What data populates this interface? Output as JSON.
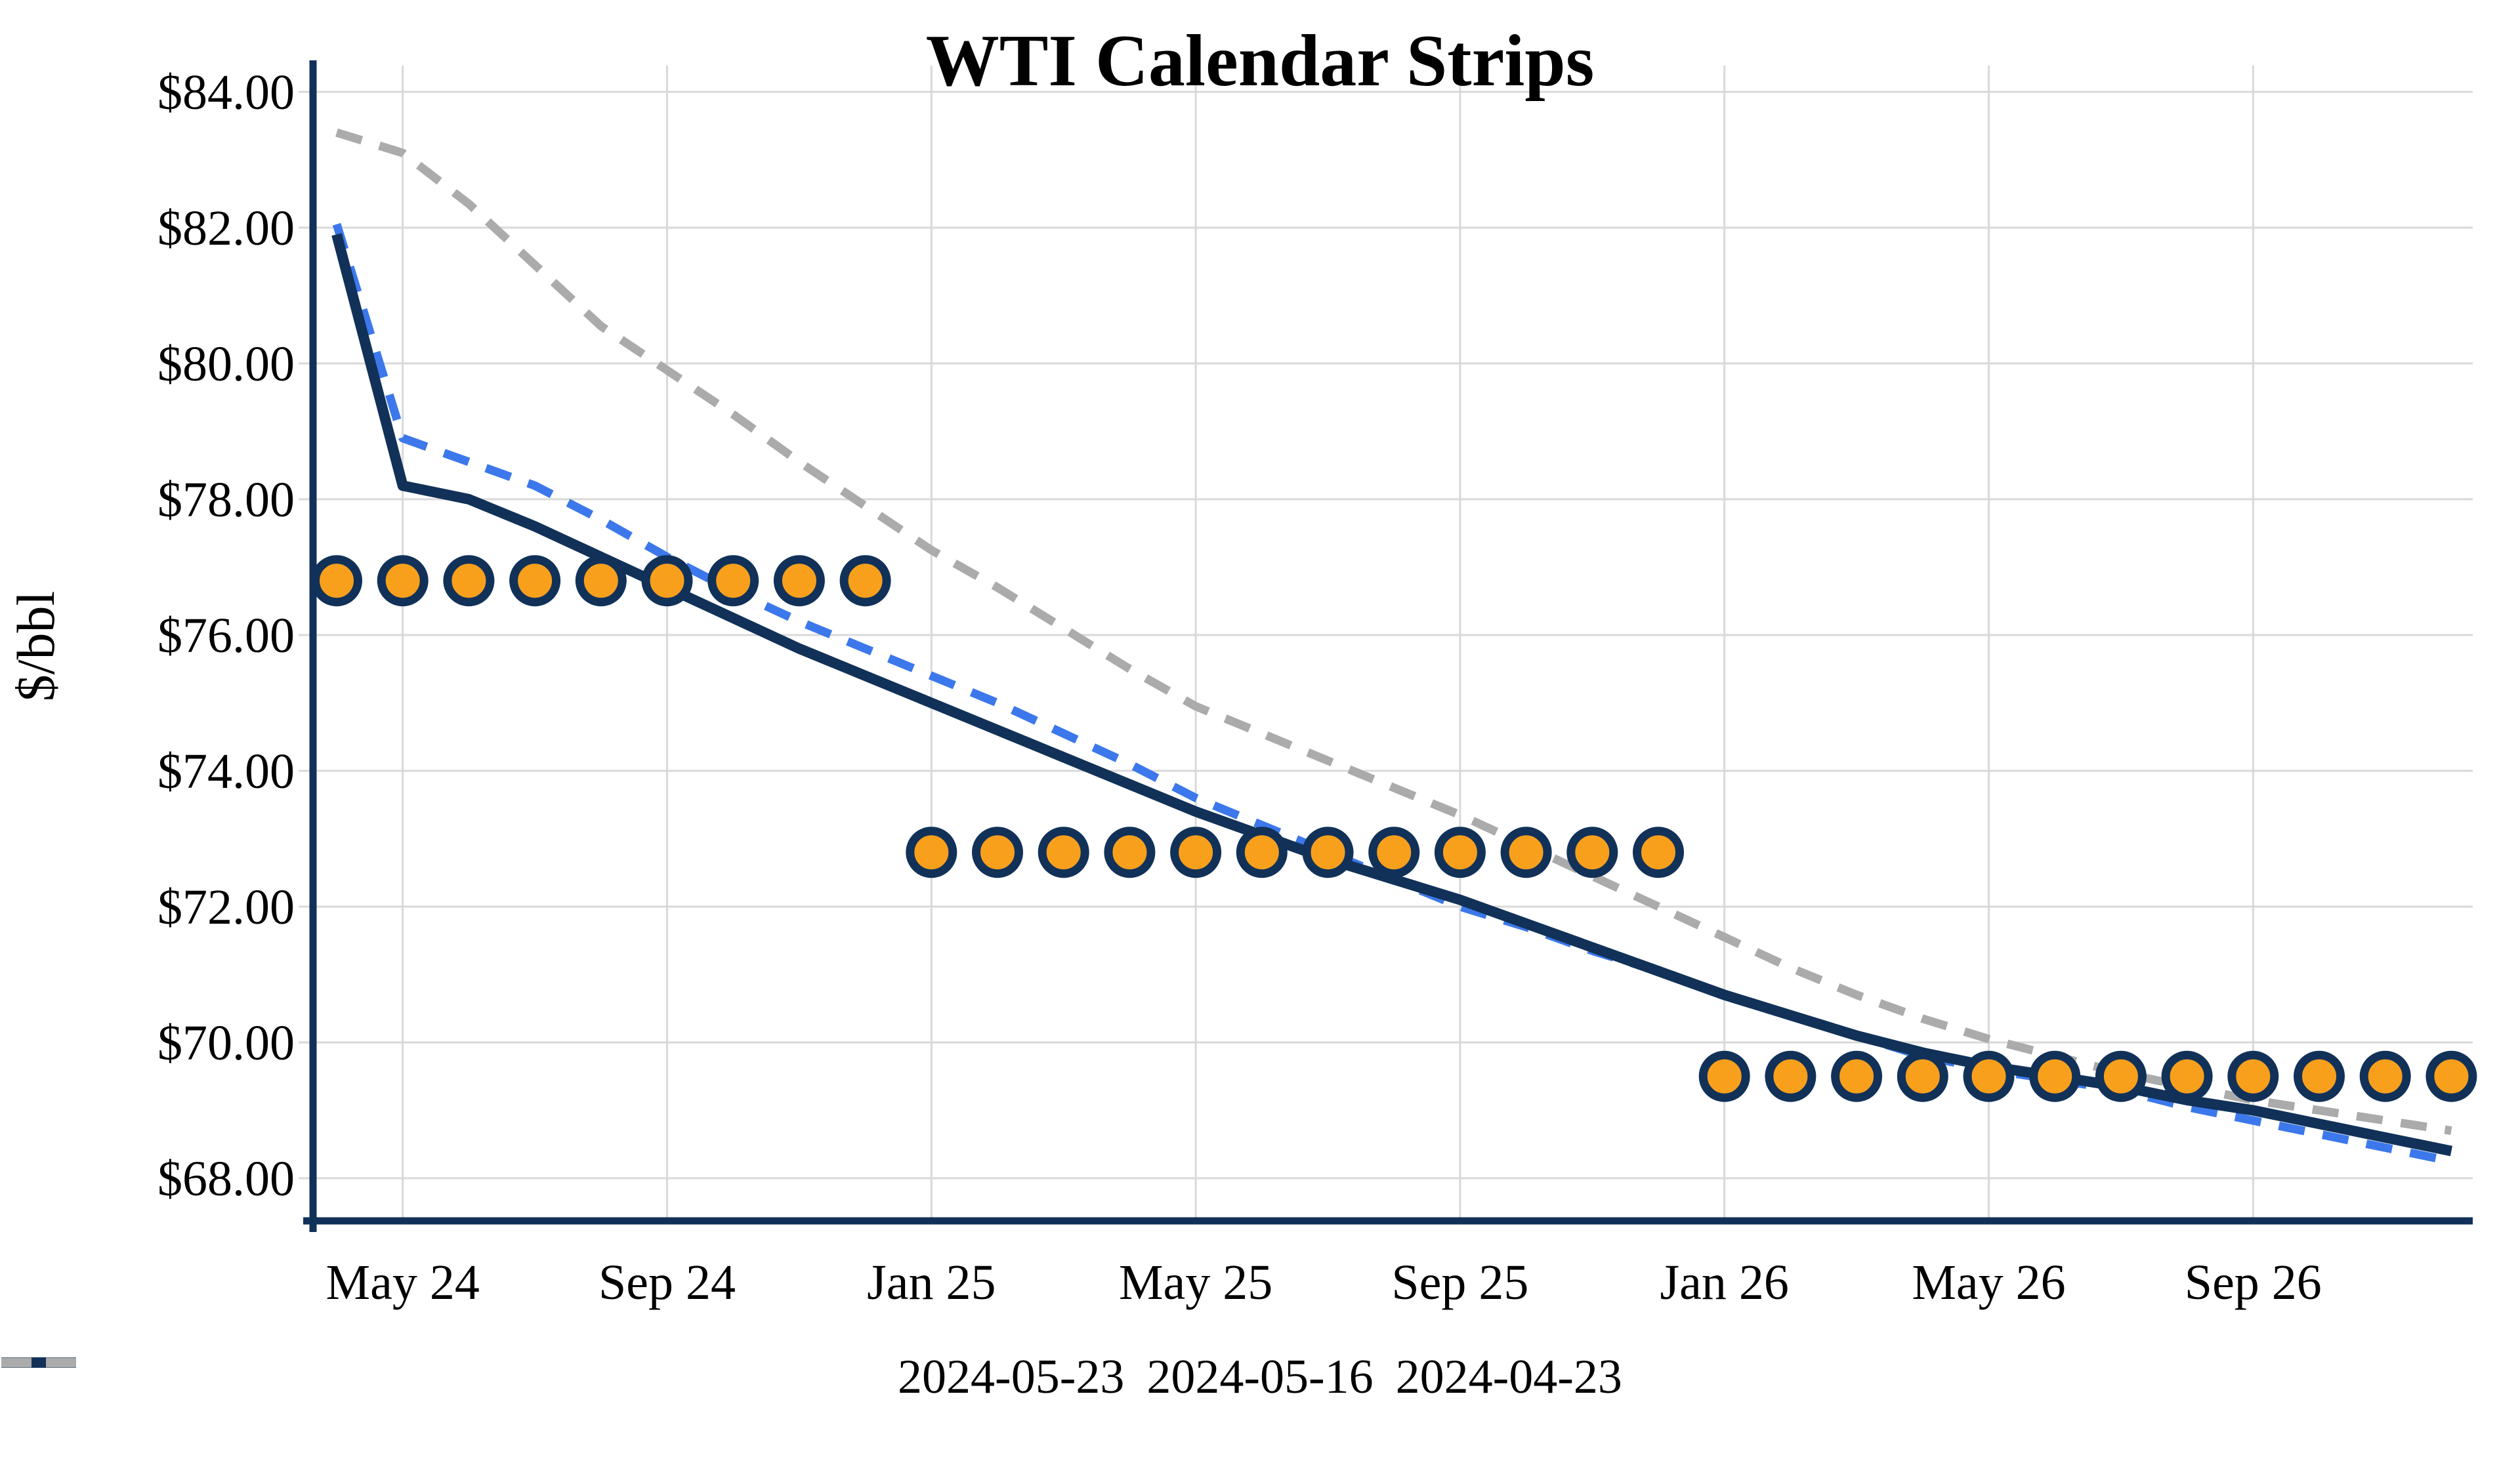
{
  "title": "WTI Calendar Strips",
  "y_axis": {
    "label": "$/bbl",
    "min": 68,
    "max": 84,
    "step": 2,
    "ticks": [
      "$84.00",
      "$82.00",
      "$80.00",
      "$78.00",
      "$76.00",
      "$74.00",
      "$72.00",
      "$70.00",
      "$68.00"
    ]
  },
  "x_axis": {
    "ticks": [
      "May 24",
      "Sep 24",
      "Jan 25",
      "May 25",
      "Sep 25",
      "Jan 26",
      "May 26",
      "Sep 26"
    ]
  },
  "legend": {
    "items": [
      {
        "label": "2024-05-23",
        "style": "solid",
        "color": "#113158"
      },
      {
        "label": "2024-05-16",
        "style": "dashed",
        "color": "#3C78EB"
      },
      {
        "label": "2024-04-23",
        "style": "dashed",
        "color": "#ABABAB"
      }
    ]
  },
  "colors": {
    "navy": "#113158",
    "blue": "#3C78EB",
    "gray": "#ABABAB",
    "orange": "#F8A01C",
    "gridline": "#D9D9D9",
    "text": "#000000",
    "background": "#FFFFFF"
  },
  "chart_data": {
    "type": "line",
    "title": "WTI Calendar Strips",
    "xlabel": "",
    "ylabel": "$/bbl",
    "ylim": [
      68,
      84
    ],
    "grid": true,
    "legend_position": "bottom",
    "x": [
      "Apr 24",
      "May 24",
      "Jun 24",
      "Jul 24",
      "Aug 24",
      "Sep 24",
      "Oct 24",
      "Nov 24",
      "Dec 24",
      "Jan 25",
      "Feb 25",
      "Mar 25",
      "Apr 25",
      "May 25",
      "Jun 25",
      "Jul 25",
      "Aug 25",
      "Sep 25",
      "Oct 25",
      "Nov 25",
      "Dec 25",
      "Jan 26",
      "Feb 26",
      "Mar 26",
      "Apr 26",
      "May 26",
      "Jun 26",
      "Jul 26",
      "Aug 26",
      "Sep 26",
      "Oct 26",
      "Nov 26",
      "Dec 26"
    ],
    "x_tick_labels": [
      "May 24",
      "Sep 24",
      "Jan 25",
      "May 25",
      "Sep 25",
      "Jan 26",
      "May 26",
      "Sep 26"
    ],
    "series": [
      {
        "name": "2024-04-23",
        "color": "#ABABAB",
        "dash": "dashed",
        "width": 13,
        "values": [
          83.4,
          83.1,
          82.35,
          81.45,
          80.55,
          79.9,
          79.25,
          78.55,
          77.9,
          77.25,
          76.7,
          76.1,
          75.5,
          74.95,
          74.55,
          74.15,
          73.75,
          73.35,
          72.9,
          72.45,
          72.0,
          71.55,
          71.1,
          70.7,
          70.35,
          70.05,
          69.8,
          69.55,
          69.35,
          69.15,
          69.0,
          68.85,
          68.7
        ]
      },
      {
        "name": "2024-05-16",
        "color": "#3C78EB",
        "dash": "dashed",
        "width": 13,
        "values": [
          82.05,
          78.9,
          78.55,
          78.2,
          77.7,
          77.15,
          76.65,
          76.2,
          75.8,
          75.4,
          75.0,
          74.55,
          74.1,
          73.6,
          73.2,
          72.8,
          72.4,
          72.0,
          71.7,
          71.35,
          71.05,
          70.7,
          70.4,
          70.1,
          69.8,
          69.6,
          69.45,
          69.3,
          69.05,
          68.85,
          68.65,
          68.45,
          68.25
        ]
      },
      {
        "name": "2024-05-23",
        "color": "#113158",
        "dash": "solid",
        "width": 16,
        "values": [
          81.9,
          78.2,
          78.0,
          77.6,
          77.15,
          76.7,
          76.25,
          75.8,
          75.4,
          75.0,
          74.6,
          74.2,
          73.8,
          73.4,
          73.05,
          72.7,
          72.4,
          72.1,
          71.75,
          71.4,
          71.05,
          70.7,
          70.4,
          70.1,
          69.85,
          69.65,
          69.5,
          69.35,
          69.15,
          69.0,
          68.8,
          68.6,
          68.4
        ]
      }
    ],
    "strip_markers": {
      "marker": "circle",
      "fill": "#F8A01C",
      "outline": "#113158",
      "rows": [
        {
          "value": 76.8,
          "from": "Apr 24",
          "to": "Dec 24"
        },
        {
          "value": 72.8,
          "from": "Jan 25",
          "to": "Dec 25"
        },
        {
          "value": 69.5,
          "from": "Jan 26",
          "to": "Dec 26"
        }
      ]
    }
  }
}
